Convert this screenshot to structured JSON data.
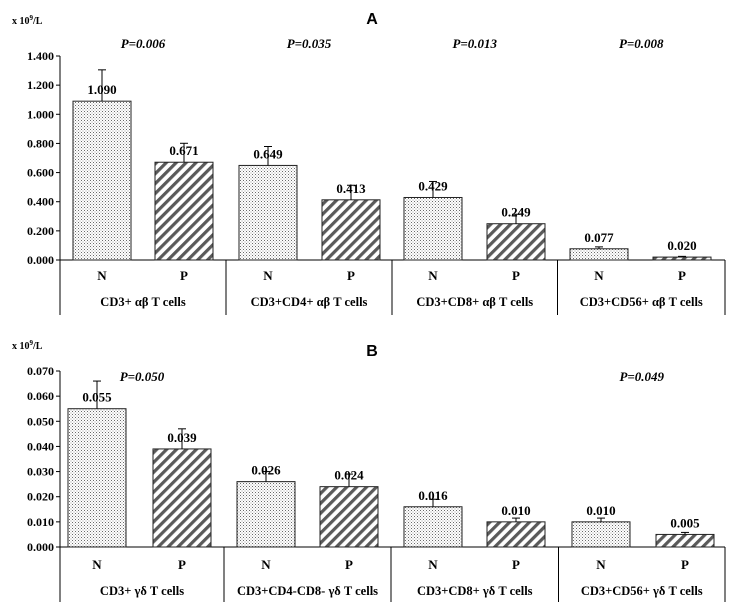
{
  "chart_data": [
    {
      "panel_label": "A",
      "type": "bar",
      "ylabel": "x 10⁹/L",
      "ylim": [
        0,
        1.4
      ],
      "yticks": [
        "0.000",
        "0.200",
        "0.400",
        "0.600",
        "0.800",
        "1.000",
        "1.200",
        "1.400"
      ],
      "groups": [
        {
          "label": "CD3+ αβ T cells",
          "p_value": "P=0.006",
          "bars": [
            {
              "cat": "N",
              "value": 1.09,
              "label": "1.090",
              "err": 0.215
            },
            {
              "cat": "P",
              "value": 0.671,
              "label": "0.671",
              "err": 0.13
            }
          ]
        },
        {
          "label": "CD3+CD4+ αβ T cells",
          "p_value": "P=0.035",
          "bars": [
            {
              "cat": "N",
              "value": 0.649,
              "label": "0.649",
              "err": 0.13
            },
            {
              "cat": "P",
              "value": 0.413,
              "label": "0.413",
              "err": 0.1
            }
          ]
        },
        {
          "label": "CD3+CD8+ αβ T cells",
          "p_value": "P=0.013",
          "bars": [
            {
              "cat": "N",
              "value": 0.429,
              "label": "0.429",
              "err": 0.11
            },
            {
              "cat": "P",
              "value": 0.249,
              "label": "0.249",
              "err": 0.065
            }
          ]
        },
        {
          "label": "CD3+CD56+ αβ T cells",
          "p_value": "P=0.008",
          "bars": [
            {
              "cat": "N",
              "value": 0.077,
              "label": "0.077",
              "err": 0.013
            },
            {
              "cat": "P",
              "value": 0.02,
              "label": "0.020",
              "err": 0.005
            }
          ]
        }
      ]
    },
    {
      "panel_label": "B",
      "type": "bar",
      "ylabel": "x 10⁹/L",
      "ylim": [
        0,
        0.07
      ],
      "yticks": [
        "0.000",
        "0.010",
        "0.020",
        "0.030",
        "0.040",
        "0.050",
        "0.060",
        "0.070"
      ],
      "groups": [
        {
          "label": "CD3+ γδ T cells",
          "p_value": "P=0.050",
          "bars": [
            {
              "cat": "N",
              "value": 0.055,
              "label": "0.055",
              "err": 0.011
            },
            {
              "cat": "P",
              "value": 0.039,
              "label": "0.039",
              "err": 0.008
            }
          ]
        },
        {
          "label": "CD3+CD4-CD8- γδ T cells",
          "p_value": "",
          "bars": [
            {
              "cat": "N",
              "value": 0.026,
              "label": "0.026",
              "err": 0.004
            },
            {
              "cat": "P",
              "value": 0.024,
              "label": "0.024",
              "err": 0.005
            }
          ]
        },
        {
          "label": "CD3+CD8+ γδ T cells",
          "p_value": "",
          "bars": [
            {
              "cat": "N",
              "value": 0.016,
              "label": "0.016",
              "err": 0.003
            },
            {
              "cat": "P",
              "value": 0.01,
              "label": "0.010",
              "err": 0.0015
            }
          ]
        },
        {
          "label": "CD3+CD56+ γδ T cells",
          "p_value": "P=0.049",
          "bars": [
            {
              "cat": "N",
              "value": 0.01,
              "label": "0.010",
              "err": 0.0015
            },
            {
              "cat": "P",
              "value": 0.005,
              "label": "0.005",
              "err": 0.0008
            }
          ]
        }
      ]
    }
  ]
}
